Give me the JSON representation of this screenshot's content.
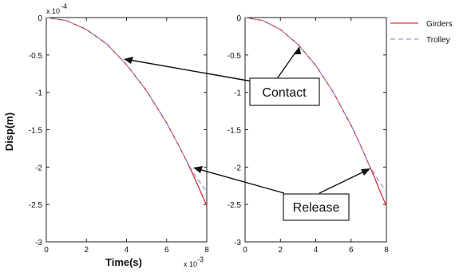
{
  "chart_data": [
    {
      "type": "line",
      "xlabel": "Time(s)",
      "ylabel": "Disp(m)",
      "x_multiplier": "x 10",
      "x_exponent": "-3",
      "y_multiplier": "x 10",
      "y_exponent": "-4",
      "xlim": [
        0,
        8
      ],
      "ylim": [
        -3,
        0
      ],
      "xticks": [
        "0",
        "2",
        "4",
        "6",
        "8"
      ],
      "yticks": [
        "0",
        "-0.5",
        "-1",
        "-1.5",
        "-2",
        "-2.5",
        "-3"
      ],
      "series": [
        {
          "name": "Girders",
          "color": "#e0303a",
          "dash": "solid",
          "x": [
            0,
            1,
            2,
            3,
            4,
            5,
            6,
            6.5,
            7,
            7.3,
            7.6,
            8
          ],
          "y": [
            0,
            -0.04,
            -0.16,
            -0.35,
            -0.63,
            -0.98,
            -1.41,
            -1.66,
            -1.92,
            -2.09,
            -2.27,
            -2.52
          ]
        },
        {
          "name": "Trolley",
          "color": "#8f9ad6",
          "dash": "dashed",
          "x": [
            0,
            1,
            2,
            3,
            4,
            5,
            6,
            6.5,
            7,
            7.3,
            7.6,
            8
          ],
          "y": [
            0,
            -0.04,
            -0.16,
            -0.35,
            -0.63,
            -0.98,
            -1.41,
            -1.66,
            -1.92,
            -2.06,
            -2.18,
            -2.33
          ]
        }
      ]
    },
    {
      "type": "line",
      "xlim": [
        0,
        8
      ],
      "ylim": [
        -3,
        0
      ],
      "xticks": [
        "0",
        "2",
        "4",
        "6",
        "8"
      ],
      "yticks": [
        "0",
        "-0.5",
        "-1",
        "-1.5",
        "-2",
        "-2.5",
        "-3"
      ],
      "series": [
        {
          "name": "Girders",
          "color": "#e0303a",
          "dash": "solid",
          "x": [
            0,
            1,
            2,
            3,
            4,
            5,
            6,
            6.5,
            7,
            7.3,
            7.6,
            8
          ],
          "y": [
            0,
            -0.04,
            -0.16,
            -0.36,
            -0.64,
            -1.0,
            -1.44,
            -1.69,
            -1.96,
            -2.12,
            -2.3,
            -2.52
          ]
        },
        {
          "name": "Trolley",
          "color": "#8f9ad6",
          "dash": "dashed",
          "x": [
            0,
            1,
            2,
            3,
            4,
            5,
            6,
            6.5,
            7,
            7.3,
            7.6,
            8
          ],
          "y": [
            0,
            -0.04,
            -0.16,
            -0.36,
            -0.64,
            -1.0,
            -1.44,
            -1.69,
            -1.96,
            -2.08,
            -2.2,
            -2.33
          ]
        }
      ]
    }
  ],
  "legend": {
    "placement": "top-right",
    "items": [
      {
        "label": "Girders",
        "color": "#e0303a",
        "dash": "solid"
      },
      {
        "label": "Trolley",
        "color": "#8f9ad6",
        "dash": "dashed"
      }
    ]
  },
  "annotations": {
    "contact": {
      "label": "Contact",
      "left_target": [
        3.9,
        -0.6
      ],
      "right_target": [
        3.1,
        -0.37
      ]
    },
    "release": {
      "label": "Release",
      "left_target": [
        7.3,
        -2.03
      ],
      "right_target": [
        7.0,
        -2.0
      ]
    }
  }
}
